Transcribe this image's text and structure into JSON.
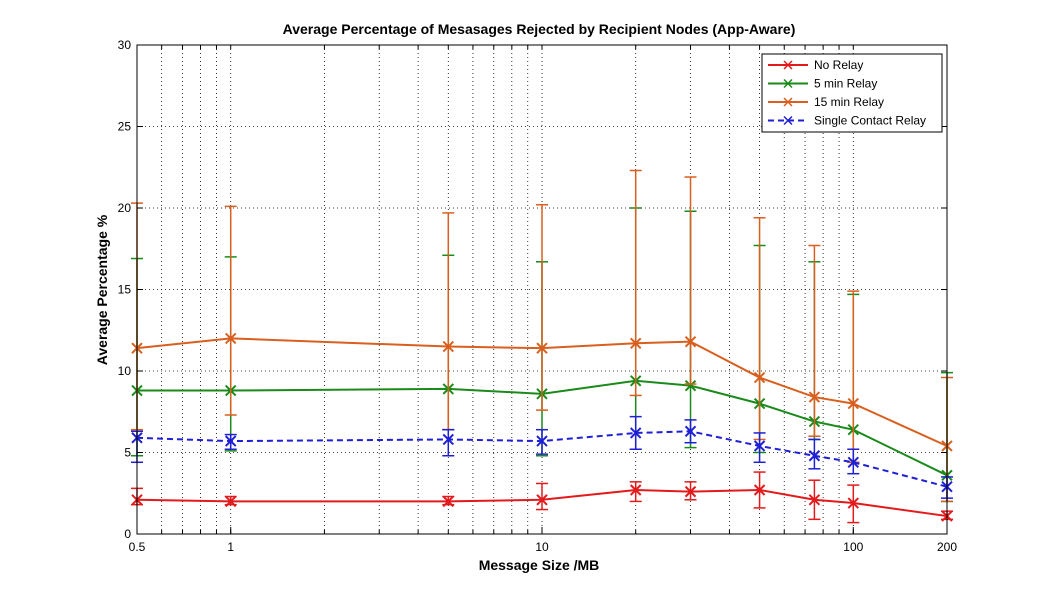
{
  "chart_data": {
    "type": "line",
    "title": "Average Percentage of Mesasages Rejected by Recipient Nodes (App-Aware)",
    "xlabel": "Message Size /MB",
    "ylabel": "Average Percentage %",
    "xscale": "log",
    "xlim": [
      0.5,
      200
    ],
    "ylim": [
      0,
      30
    ],
    "x_ticks": [
      0.5,
      1,
      10,
      100,
      200
    ],
    "x_tick_labels": [
      "0.5",
      "1",
      "10",
      "100",
      "200"
    ],
    "y_ticks": [
      0,
      5,
      10,
      15,
      20,
      25,
      30
    ],
    "y_tick_labels": [
      "0",
      "5",
      "10",
      "15",
      "20",
      "25",
      "30"
    ],
    "grid": true,
    "legend_position": "top-right",
    "x": [
      0.5,
      1,
      5,
      10,
      20,
      30,
      50,
      75,
      100,
      200
    ],
    "series": [
      {
        "name": "No Relay",
        "color": "#e31a1c",
        "line_style": "solid",
        "marker": "x",
        "values": [
          2.1,
          2.0,
          2.0,
          2.1,
          2.7,
          2.6,
          2.7,
          2.1,
          1.9,
          1.1
        ],
        "err_low": [
          1.8,
          1.8,
          1.8,
          1.5,
          2.0,
          2.1,
          1.6,
          0.9,
          0.7,
          0.9
        ],
        "err_high": [
          2.8,
          2.3,
          2.3,
          3.1,
          3.2,
          3.2,
          3.8,
          3.3,
          3.0,
          1.4
        ]
      },
      {
        "name": "5 min Relay",
        "color": "#1a8a1a",
        "line_style": "solid",
        "marker": "x",
        "values": [
          8.8,
          8.8,
          8.9,
          8.6,
          9.4,
          9.1,
          8.0,
          6.9,
          6.4,
          3.6
        ],
        "err_low": [
          4.8,
          5.1,
          6.4,
          4.8,
          5.2,
          5.3,
          5.0,
          5.8,
          4.4,
          2.0
        ],
        "err_high": [
          16.9,
          17.0,
          17.1,
          16.7,
          20.0,
          19.8,
          17.7,
          16.7,
          14.7,
          9.9
        ]
      },
      {
        "name": "15 min Relay",
        "color": "#d95f1e",
        "line_style": "solid",
        "marker": "x",
        "values": [
          11.4,
          12.0,
          11.5,
          11.4,
          11.7,
          11.8,
          9.6,
          8.4,
          8.0,
          5.4
        ],
        "err_low": [
          6.4,
          7.3,
          6.4,
          7.6,
          8.5,
          9.2,
          5.8,
          6.0,
          4.4,
          2.0
        ],
        "err_high": [
          20.3,
          20.1,
          19.7,
          20.2,
          22.3,
          21.9,
          19.4,
          17.7,
          14.9,
          9.6
        ]
      },
      {
        "name": "Single Contact Relay",
        "color": "#1f1fd6",
        "line_style": "dashed",
        "marker": "x",
        "values": [
          5.9,
          5.7,
          5.8,
          5.7,
          6.2,
          6.3,
          5.4,
          4.8,
          4.4,
          2.9
        ],
        "err_low": [
          4.4,
          5.2,
          4.8,
          4.9,
          5.2,
          5.6,
          4.4,
          4.0,
          3.7,
          2.2
        ],
        "err_high": [
          6.3,
          6.1,
          6.4,
          6.4,
          7.2,
          7.0,
          6.2,
          5.8,
          5.2,
          3.5
        ]
      }
    ]
  }
}
